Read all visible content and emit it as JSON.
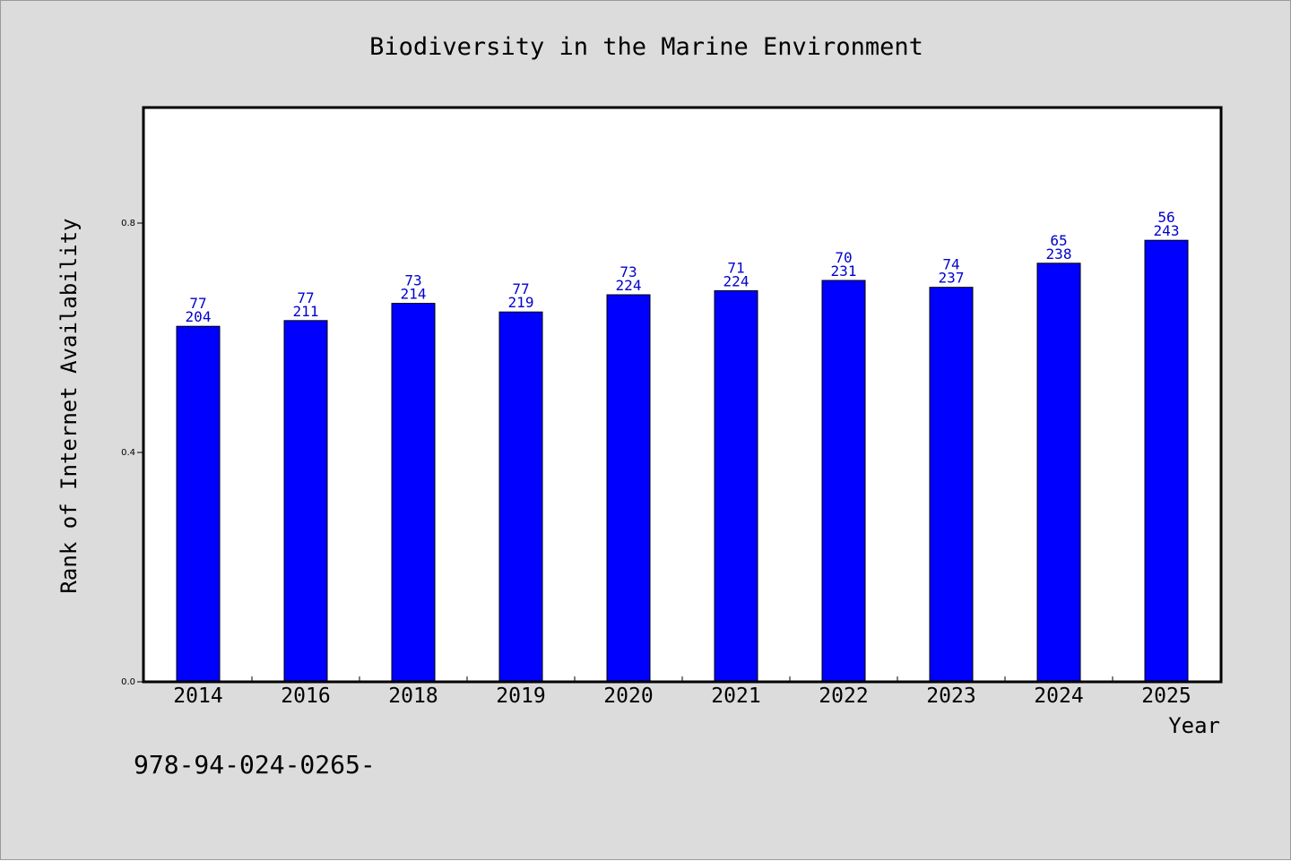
{
  "chart_data": {
    "type": "bar",
    "title": "Biodiversity in the Marine Environment",
    "xlabel": "Year",
    "ylabel": "Rank of Internet Availability",
    "categories": [
      "2014",
      "2016",
      "2018",
      "2019",
      "2020",
      "2021",
      "2022",
      "2023",
      "2024",
      "2025"
    ],
    "values": [
      0.62,
      0.63,
      0.66,
      0.645,
      0.675,
      0.682,
      0.7,
      0.688,
      0.73,
      0.77
    ],
    "label_top": [
      "77",
      "77",
      "73",
      "77",
      "73",
      "71",
      "70",
      "74",
      "65",
      "56"
    ],
    "label_bottom": [
      "204",
      "211",
      "214",
      "219",
      "224",
      "224",
      "231",
      "237",
      "238",
      "243"
    ],
    "yticks": [
      0.0,
      0.4,
      0.8
    ],
    "ytick_labels": [
      "0.0",
      "0.4",
      "0.8"
    ],
    "ylim": [
      0,
      1.0
    ],
    "grid": false,
    "colors": {
      "bar": "#0000ff",
      "label": "#0000cc",
      "background": "#dcdcdc",
      "plot_area": "#ffffff"
    }
  },
  "footer_text": "978-94-024-0265-"
}
